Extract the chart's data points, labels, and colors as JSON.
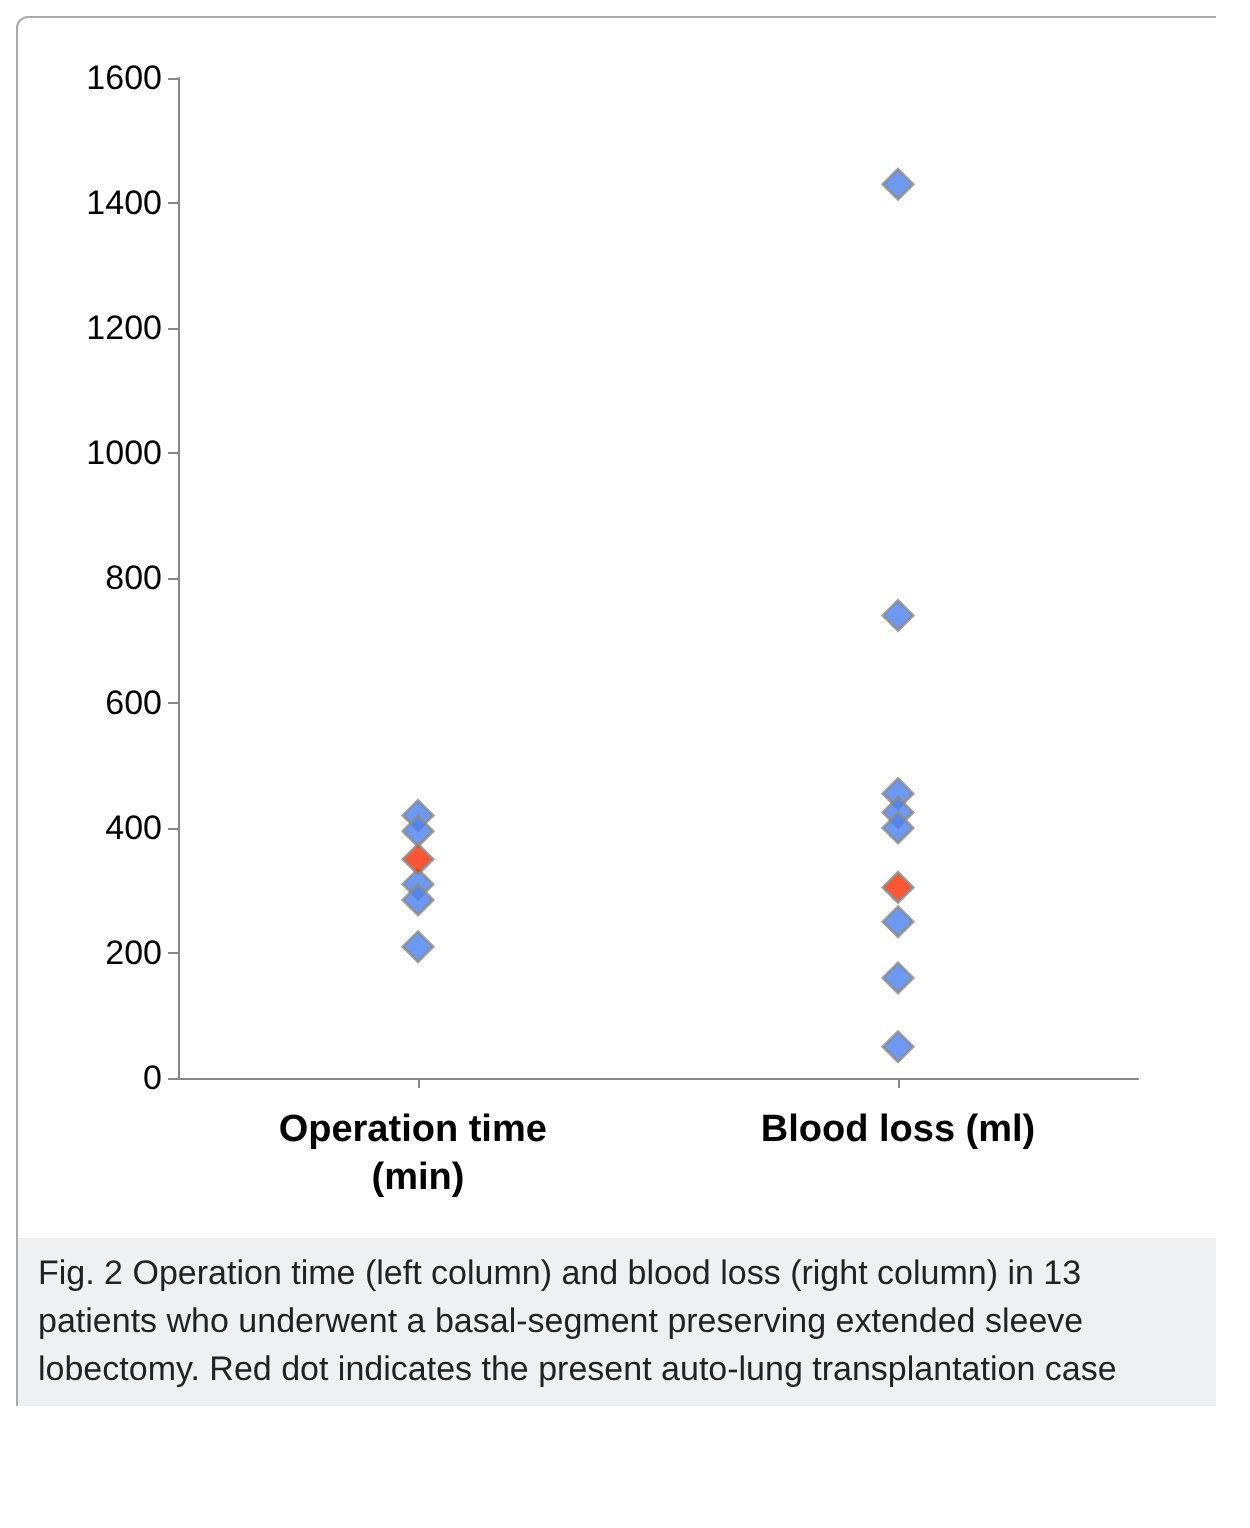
{
  "chart_data": {
    "type": "scatter",
    "categories": [
      "Operation time (min)",
      "Blood loss (ml)"
    ],
    "series": [
      {
        "color": "#4a7ff0",
        "x": [
          "Operation time (min)",
          "Operation time (min)",
          "Operation time (min)",
          "Operation time (min)",
          "Operation time (min)",
          "Blood loss (ml)",
          "Blood loss (ml)",
          "Blood loss (ml)",
          "Blood loss (ml)",
          "Blood loss (ml)",
          "Blood loss (ml)",
          "Blood loss (ml)",
          "Blood loss (ml)"
        ],
        "values": [
          420,
          395,
          310,
          285,
          210,
          1430,
          740,
          455,
          425,
          400,
          250,
          160,
          50
        ]
      },
      {
        "color": "#ff2a00",
        "x": [
          "Operation time (min)",
          "Blood loss (ml)"
        ],
        "values": [
          350,
          305
        ]
      }
    ],
    "ylim": [
      0,
      1600
    ],
    "yticks": [
      0,
      200,
      400,
      600,
      800,
      1000,
      1200,
      1400,
      1600
    ],
    "marker": "diamond",
    "grid": false,
    "annotations": [
      "Fig. 2 Operation time (left column) and blood loss (right column) in 13 patients who underwent a basal-segment preserving extended sleeve lobectomy. Red dot indicates the present auto-lung transplantation case"
    ]
  }
}
